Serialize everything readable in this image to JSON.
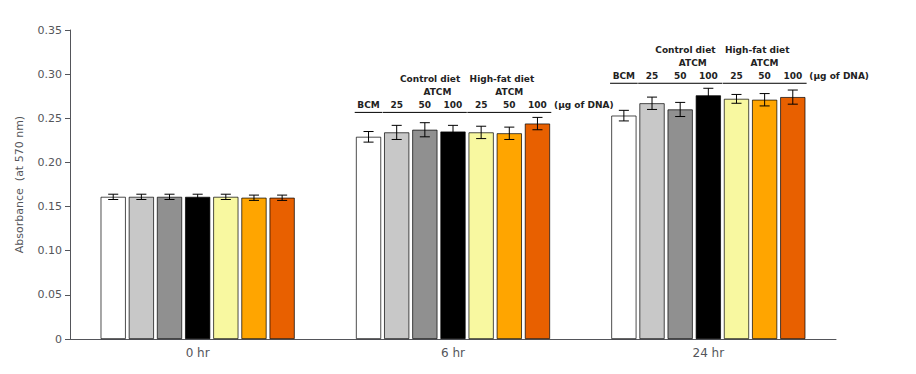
{
  "chart_data": {
    "type": "bar",
    "categories": [
      "0 hr",
      "6 hr",
      "24 hr"
    ],
    "series": [
      {
        "color": "white",
        "values": [
          0.161,
          0.229,
          0.253
        ],
        "errors": [
          0.003,
          0.006,
          0.006
        ]
      },
      {
        "color": "#c8c8c8",
        "values": [
          0.161,
          0.234,
          0.267
        ],
        "errors": [
          0.003,
          0.008,
          0.007
        ]
      },
      {
        "color": "#909090",
        "values": [
          0.161,
          0.237,
          0.26
        ],
        "errors": [
          0.003,
          0.008,
          0.008
        ]
      },
      {
        "color": "#000000",
        "values": [
          0.161,
          0.235,
          0.276
        ],
        "errors": [
          0.003,
          0.007,
          0.008
        ]
      },
      {
        "color": "#f8f8a0",
        "values": [
          0.161,
          0.234,
          0.272
        ],
        "errors": [
          0.003,
          0.007,
          0.005
        ]
      },
      {
        "color": "#ffa500",
        "values": [
          0.16,
          0.233,
          0.271
        ],
        "errors": [
          0.003,
          0.007,
          0.007
        ]
      },
      {
        "color": "#e86000",
        "values": [
          0.16,
          0.244,
          0.274
        ],
        "errors": [
          0.003,
          0.007,
          0.008
        ]
      }
    ],
    "ylabel": "Absorbance  (at 570 nm)",
    "ylim": [
      0,
      0.35
    ],
    "yticks": [
      0,
      0.05,
      {
        "value": 0.1,
        "label": "0.10"
      },
      0.15,
      {
        "value": 0.2,
        "label": "0.20"
      },
      0.25,
      {
        "value": 0.3,
        "label": "0.30"
      },
      0.35
    ],
    "grid": false,
    "annotations": [
      {
        "category": "6 hr",
        "lines": [
          "Control diet   High-fat diet",
          "    ATCM              ATCM"
        ],
        "bar_labels": [
          "BCM",
          "25",
          "50",
          "100",
          "25",
          "50",
          "100"
        ],
        "unit": "(μg of DNA)"
      },
      {
        "category": "24 hr",
        "lines": [
          "Control diet   High-fat diet",
          "    ATCM              ATCM"
        ],
        "bar_labels": [
          "BCM",
          "25",
          "50",
          "100",
          "25",
          "50",
          "100"
        ],
        "unit": "(μg of DNA)"
      }
    ]
  }
}
